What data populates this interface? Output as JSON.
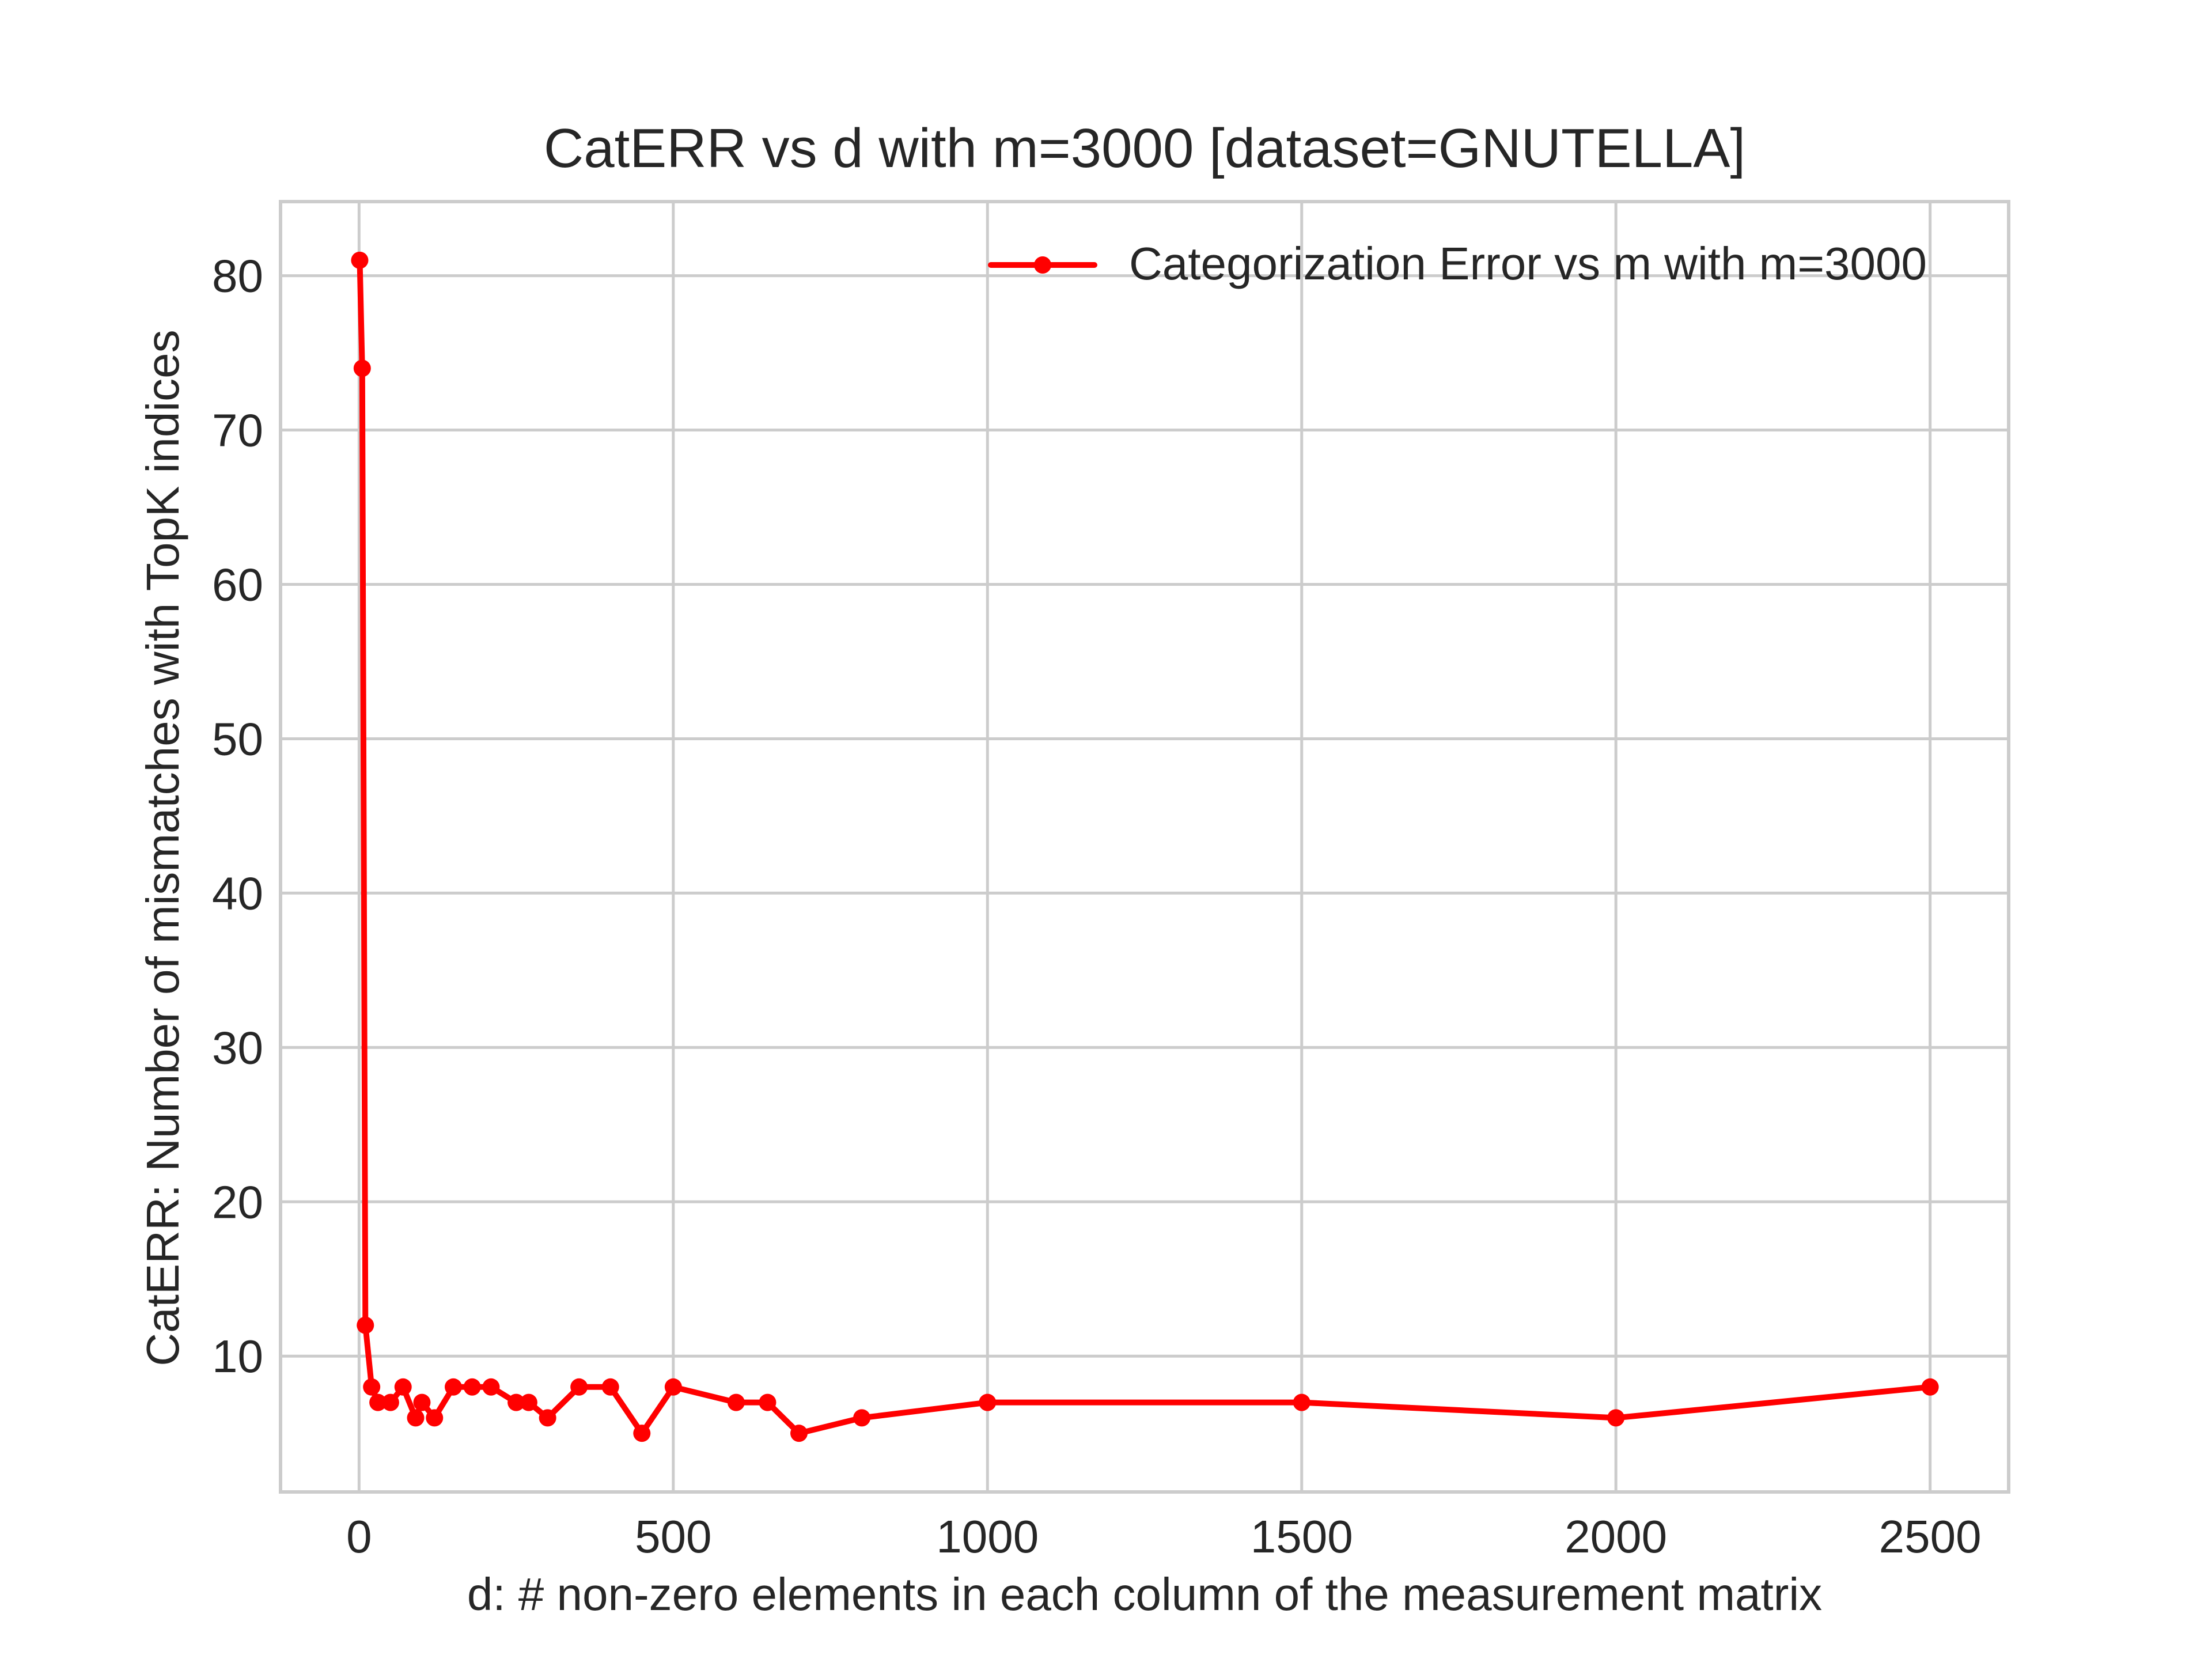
{
  "chart_data": {
    "type": "line",
    "title": "CatERR vs d with m=3000 [dataset=GNUTELLA]",
    "xlabel": "d: # non-zero elements in each column of the measurement matrix",
    "ylabel": "CatERR: Number of mismatches with TopK indices",
    "xlim": [
      -125,
      2625
    ],
    "ylim": [
      1.2,
      84.8
    ],
    "xticks": [
      0,
      500,
      1000,
      1500,
      2000,
      2500
    ],
    "yticks": [
      10,
      20,
      30,
      40,
      50,
      60,
      70,
      80
    ],
    "grid": true,
    "legend_position": "upper right",
    "series": [
      {
        "name": "Categorization Error vs m with m=3000",
        "color": "#ff0000",
        "x": [
          1,
          5,
          10,
          20,
          30,
          50,
          70,
          90,
          100,
          120,
          150,
          180,
          210,
          250,
          270,
          300,
          350,
          400,
          450,
          500,
          600,
          650,
          700,
          800,
          1000,
          1500,
          2000,
          2500
        ],
        "y": [
          81,
          74,
          12,
          8,
          7,
          7,
          8,
          6,
          7,
          6,
          8,
          8,
          8,
          7,
          7,
          6,
          8,
          8,
          5,
          8,
          7,
          7,
          5,
          6,
          7,
          7,
          6,
          8
        ]
      }
    ]
  }
}
